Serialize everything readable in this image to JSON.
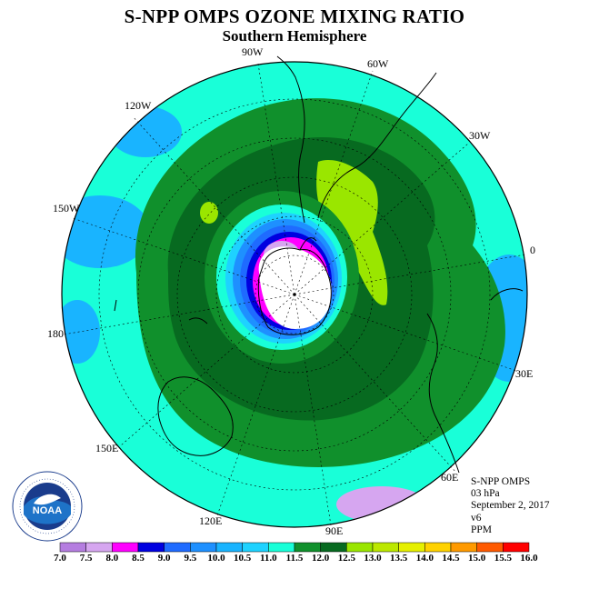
{
  "title": "S-NPP OMPS OZONE MIXING RATIO",
  "subtitle": "Southern Hemisphere",
  "longitude_labels": {
    "90W": "90W",
    "60W": "60W",
    "120W": "120W",
    "30W": "30W",
    "150W": "150W",
    "0": "0",
    "180": "180",
    "30E": "30E",
    "150E": "150E",
    "60E": "60E",
    "120E": "120E",
    "90E": "90E"
  },
  "info": {
    "instrument": "S-NPP OMPS",
    "level": "03 hPa",
    "date": "September 2, 2017",
    "version": "v6",
    "units": "PPM"
  },
  "logo_text": "NOAA",
  "colorbar": {
    "ticks": [
      "7.0",
      "7.5",
      "8.0",
      "8.5",
      "9.0",
      "9.5",
      "10.0",
      "10.5",
      "11.0",
      "11.5",
      "12.0",
      "12.5",
      "13.0",
      "13.5",
      "14.0",
      "14.5",
      "15.0",
      "15.5",
      "16.0"
    ],
    "colors": [
      "#b57de0",
      "#d6a6f0",
      "#ff00ff",
      "#0000e0",
      "#1f6bff",
      "#1e90ff",
      "#19b4ff",
      "#1ed2ff",
      "#19ffd8",
      "#10902c",
      "#076a20",
      "#9ae600",
      "#bce800",
      "#e6f000",
      "#ffd200",
      "#ff9a00",
      "#ff5a00",
      "#ff0000",
      "#8b5a3c"
    ]
  },
  "colors": {
    "cyan_band": "#19ffd8",
    "light_blue_band": "#19b4ff",
    "green_mid": "#10902c",
    "green_dark": "#076a20",
    "lime": "#9ae600"
  }
}
